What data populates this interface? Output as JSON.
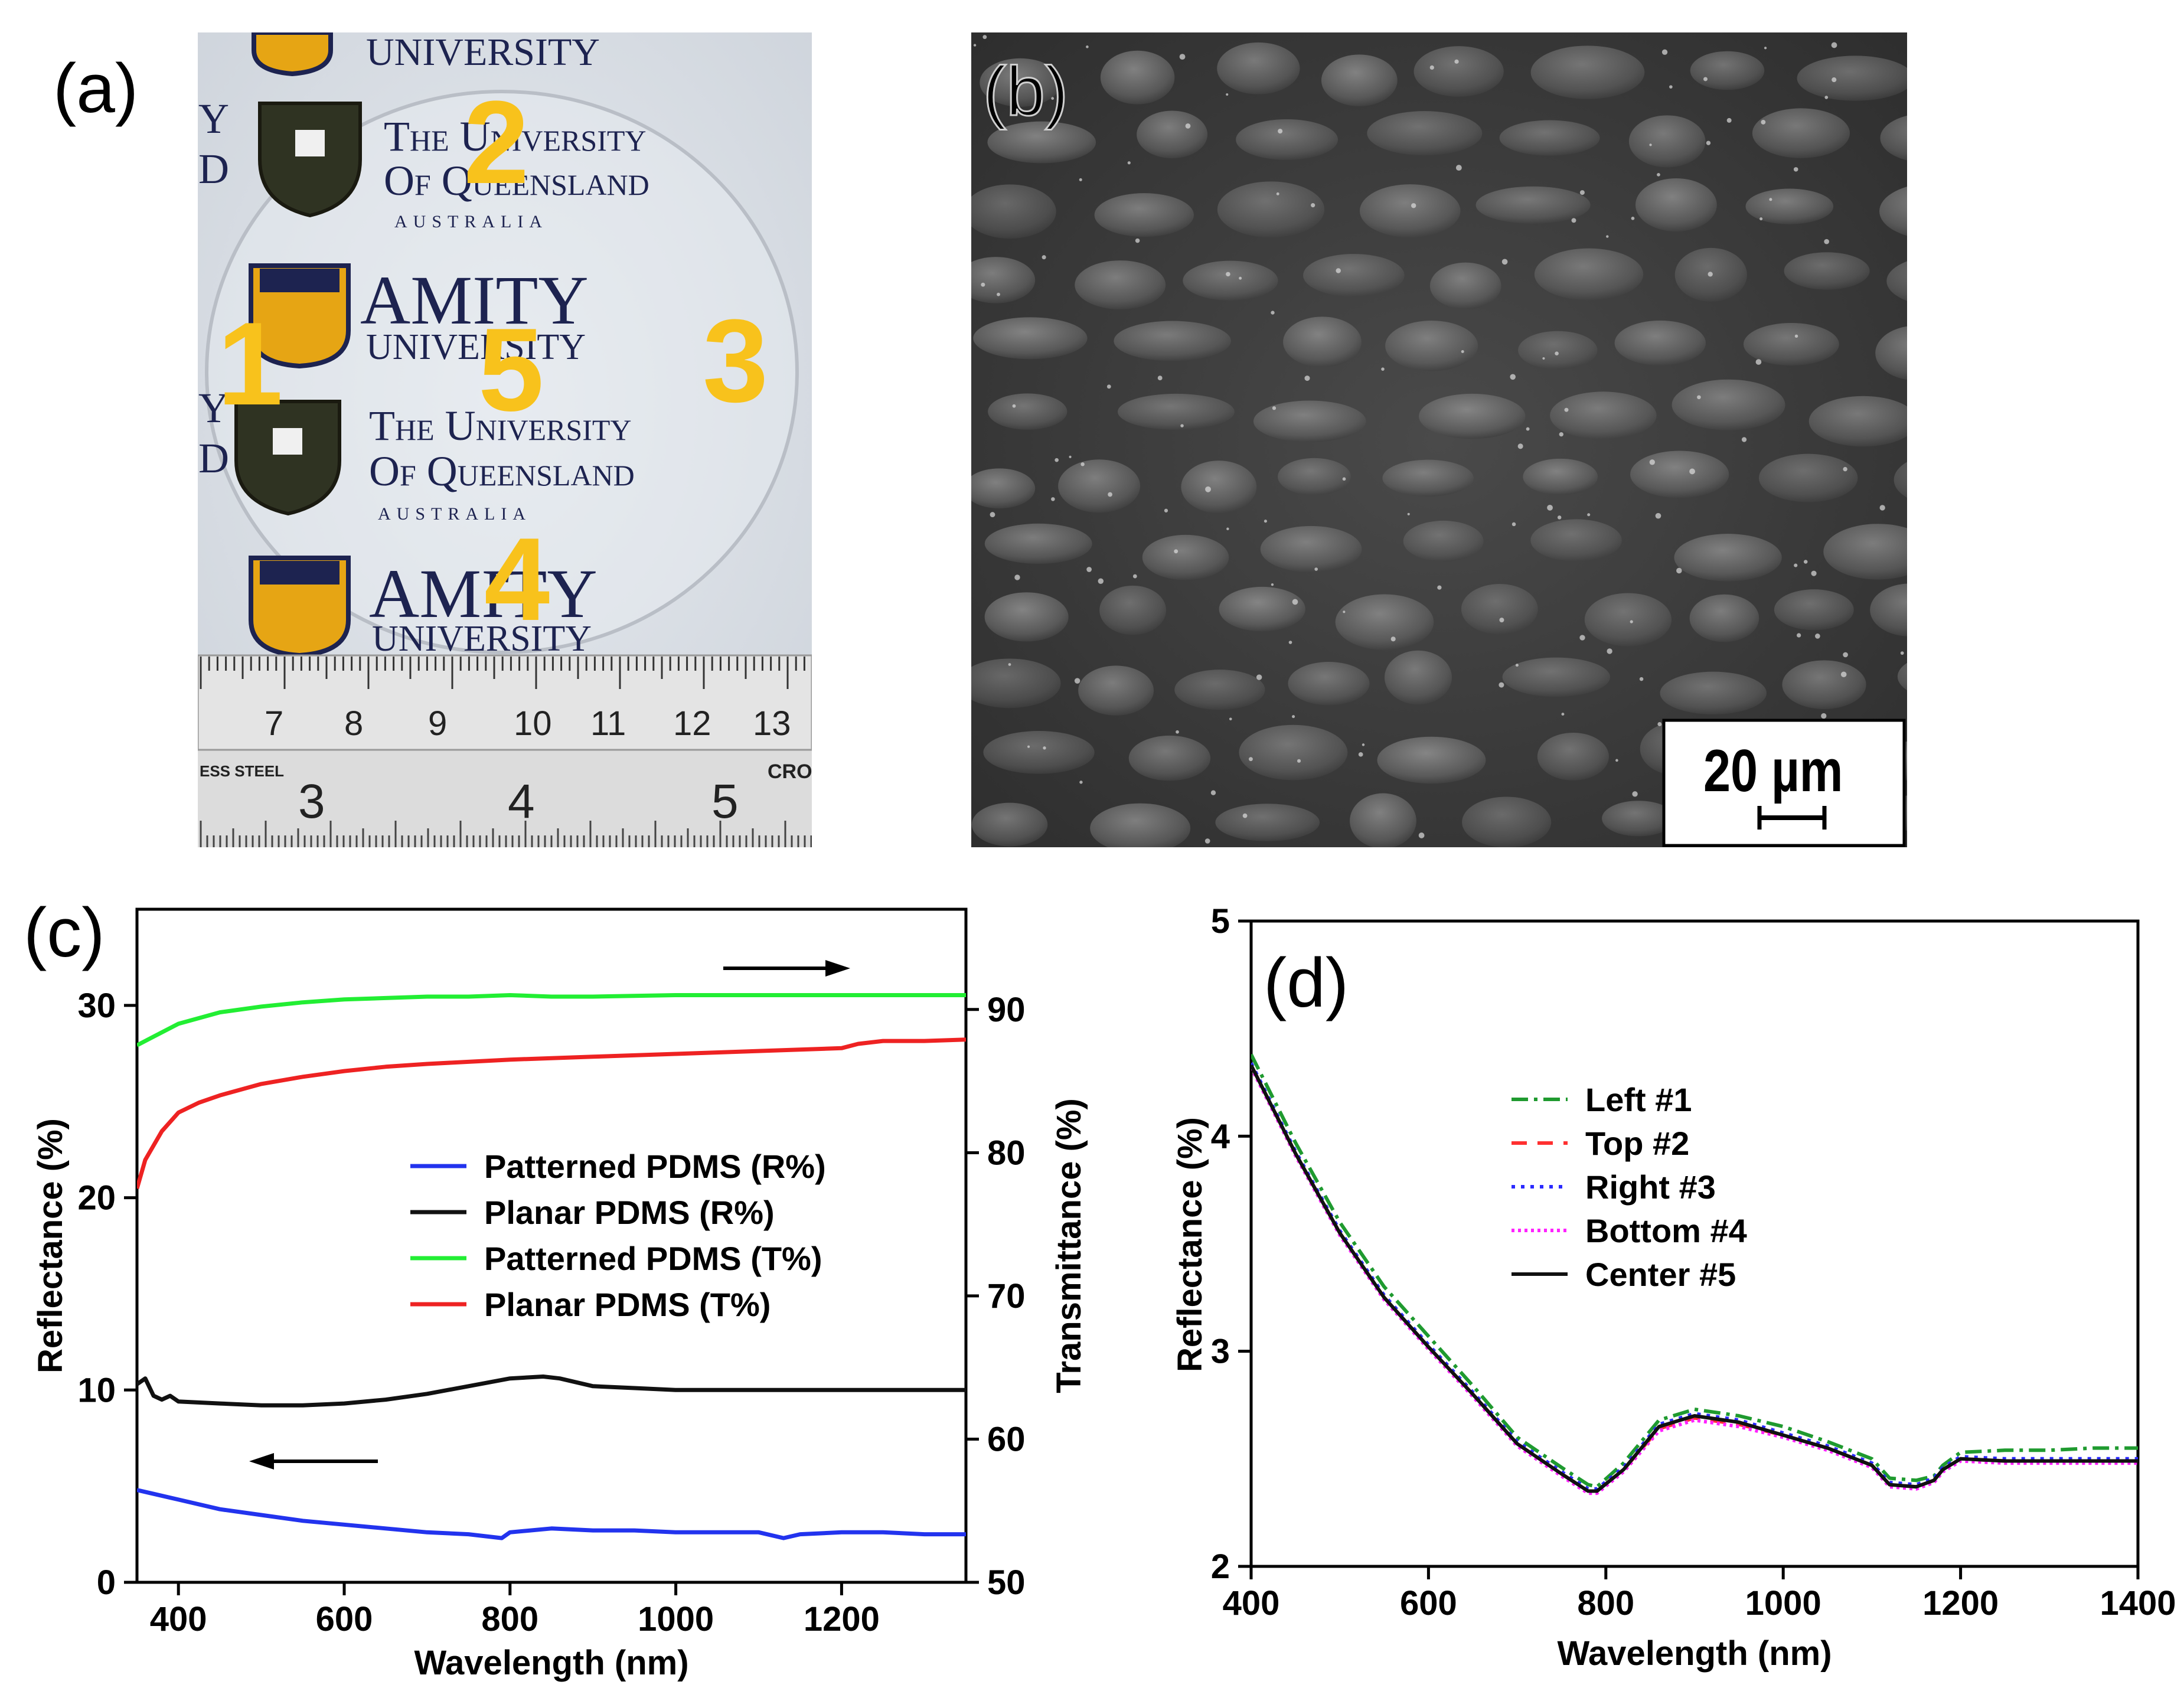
{
  "panels": {
    "a": {
      "label": "(a)",
      "logos": {
        "uq_line1": "The University",
        "uq_line2": "Of Queensland",
        "uq_line3": "AUSTRALIA",
        "amity_line1": "AMITY",
        "amity_line2": "UNIVERSITY",
        "fragment_y": "Y",
        "fragment_d": "D"
      },
      "position_markers": [
        "1",
        "2",
        "3",
        "4",
        "5"
      ],
      "ruler_top_numbers": [
        "7",
        "8",
        "9",
        "10",
        "11",
        "12",
        "13"
      ],
      "ruler_bottom_text_left": "ESS STEEL",
      "ruler_bottom_text_right": "CRO",
      "ruler_bottom_numbers": [
        "3",
        "4",
        "5"
      ]
    },
    "b": {
      "label": "(b)",
      "scale_bar_text": "20 µm"
    },
    "c": {
      "label": "(c)"
    },
    "d": {
      "label": "(d)"
    }
  },
  "chart_data": [
    {
      "panel": "c",
      "type": "line",
      "xlabel": "Wavelength (nm)",
      "ylabel": "Reflectance (%)",
      "y2label": "Transmittance (%)",
      "xlim": [
        350,
        1350
      ],
      "ylim": [
        0,
        35
      ],
      "y2lim": [
        50,
        97
      ],
      "xticks": [
        400,
        600,
        800,
        1000,
        1200
      ],
      "yticks": [
        0,
        10,
        20,
        30
      ],
      "y2ticks": [
        50,
        60,
        70,
        80,
        90
      ],
      "series": [
        {
          "name": "Patterned PDMS (R%)",
          "axis": "left",
          "color": "#2233ee",
          "x": [
            350,
            400,
            450,
            500,
            550,
            600,
            650,
            700,
            750,
            790,
            800,
            850,
            900,
            950,
            1000,
            1050,
            1100,
            1130,
            1150,
            1200,
            1250,
            1300,
            1350
          ],
          "y": [
            4.8,
            4.3,
            3.8,
            3.5,
            3.2,
            3.0,
            2.8,
            2.6,
            2.5,
            2.3,
            2.6,
            2.8,
            2.7,
            2.7,
            2.6,
            2.6,
            2.6,
            2.3,
            2.5,
            2.6,
            2.6,
            2.5,
            2.5
          ]
        },
        {
          "name": "Planar PDMS (R%)",
          "axis": "left",
          "color": "#111111",
          "x": [
            350,
            360,
            370,
            380,
            390,
            400,
            450,
            500,
            550,
            600,
            650,
            700,
            750,
            800,
            840,
            860,
            900,
            950,
            1000,
            1050,
            1100,
            1150,
            1200,
            1250,
            1300,
            1350
          ],
          "y": [
            10.3,
            10.6,
            9.7,
            9.5,
            9.7,
            9.4,
            9.3,
            9.2,
            9.2,
            9.3,
            9.5,
            9.8,
            10.2,
            10.6,
            10.7,
            10.6,
            10.2,
            10.1,
            10.0,
            10.0,
            10.0,
            10.0,
            10.0,
            10.0,
            10.0,
            10.0
          ]
        },
        {
          "name": "Patterned PDMS  (T%)",
          "axis": "right",
          "color": "#22ee33",
          "x": [
            350,
            400,
            450,
            500,
            550,
            600,
            650,
            700,
            750,
            800,
            850,
            900,
            1000,
            1100,
            1200,
            1300,
            1350
          ],
          "y": [
            87.5,
            89.0,
            89.8,
            90.2,
            90.5,
            90.7,
            90.8,
            90.9,
            90.9,
            91.0,
            90.9,
            90.9,
            91.0,
            91.0,
            91.0,
            91.0,
            91.0
          ]
        },
        {
          "name": "Planar PDMS (T%)",
          "axis": "right",
          "color": "#ee2222",
          "x": [
            350,
            360,
            380,
            400,
            425,
            450,
            500,
            550,
            600,
            650,
            700,
            800,
            900,
            1000,
            1100,
            1200,
            1220,
            1250,
            1300,
            1350
          ],
          "y": [
            77.5,
            79.5,
            81.5,
            82.8,
            83.5,
            84.0,
            84.8,
            85.3,
            85.7,
            86.0,
            86.2,
            86.5,
            86.7,
            86.9,
            87.1,
            87.3,
            87.6,
            87.8,
            87.8,
            87.9
          ]
        }
      ]
    },
    {
      "panel": "d",
      "type": "line",
      "xlabel": "Wavelength (nm)",
      "ylabel": "Reflectance (%)",
      "xlim": [
        400,
        1400
      ],
      "ylim": [
        2,
        5
      ],
      "xticks": [
        400,
        600,
        800,
        1000,
        1200,
        1400
      ],
      "yticks": [
        2,
        3,
        4,
        5
      ],
      "series": [
        {
          "name": "Left #1",
          "color": "#1f9a2f",
          "dash": "28,10,6,10",
          "x": [
            400,
            450,
            500,
            550,
            600,
            650,
            700,
            750,
            780,
            790,
            820,
            860,
            900,
            950,
            1000,
            1050,
            1100,
            1120,
            1150,
            1170,
            1180,
            1200,
            1250,
            1300,
            1350,
            1400
          ],
          "y": [
            4.38,
            3.97,
            3.6,
            3.3,
            3.07,
            2.84,
            2.6,
            2.46,
            2.38,
            2.37,
            2.48,
            2.68,
            2.73,
            2.7,
            2.65,
            2.58,
            2.5,
            2.41,
            2.4,
            2.42,
            2.47,
            2.53,
            2.54,
            2.54,
            2.55,
            2.55
          ]
        },
        {
          "name": "Top #2",
          "color": "#ff3030",
          "dash": "26,18",
          "x": [
            400,
            450,
            500,
            550,
            600,
            650,
            700,
            750,
            780,
            790,
            820,
            860,
            900,
            950,
            1000,
            1050,
            1100,
            1120,
            1150,
            1170,
            1180,
            1200,
            1250,
            1300,
            1350,
            1400
          ],
          "y": [
            4.33,
            3.92,
            3.55,
            3.25,
            3.02,
            2.8,
            2.57,
            2.43,
            2.35,
            2.35,
            2.45,
            2.64,
            2.69,
            2.66,
            2.61,
            2.55,
            2.47,
            2.38,
            2.37,
            2.4,
            2.45,
            2.5,
            2.49,
            2.49,
            2.49,
            2.49
          ]
        },
        {
          "name": "Right #3",
          "color": "#2a2aff",
          "dash": "6,10",
          "x": [
            400,
            450,
            500,
            550,
            600,
            650,
            700,
            750,
            780,
            790,
            820,
            860,
            900,
            950,
            1000,
            1050,
            1100,
            1120,
            1150,
            1170,
            1180,
            1200,
            1250,
            1300,
            1350,
            1400
          ],
          "y": [
            4.34,
            3.93,
            3.56,
            3.26,
            3.03,
            2.81,
            2.58,
            2.44,
            2.36,
            2.36,
            2.46,
            2.66,
            2.71,
            2.68,
            2.62,
            2.56,
            2.48,
            2.39,
            2.38,
            2.41,
            2.46,
            2.51,
            2.5,
            2.5,
            2.5,
            2.5
          ]
        },
        {
          "name": "Bottom #4",
          "color": "#ff22ff",
          "dash": "5,6",
          "x": [
            400,
            450,
            500,
            550,
            600,
            650,
            700,
            750,
            780,
            790,
            820,
            860,
            900,
            950,
            1000,
            1050,
            1100,
            1120,
            1150,
            1170,
            1180,
            1200,
            1250,
            1300,
            1350,
            1400
          ],
          "y": [
            4.32,
            3.91,
            3.54,
            3.24,
            3.01,
            2.79,
            2.56,
            2.42,
            2.34,
            2.34,
            2.44,
            2.63,
            2.68,
            2.65,
            2.6,
            2.54,
            2.46,
            2.37,
            2.36,
            2.39,
            2.44,
            2.49,
            2.48,
            2.48,
            2.48,
            2.48
          ]
        },
        {
          "name": "Center #5",
          "color": "#111111",
          "dash": "",
          "x": [
            400,
            450,
            500,
            550,
            600,
            650,
            700,
            750,
            780,
            790,
            820,
            860,
            900,
            950,
            1000,
            1050,
            1100,
            1120,
            1150,
            1170,
            1180,
            1200,
            1250,
            1300,
            1350,
            1400
          ],
          "y": [
            4.33,
            3.92,
            3.55,
            3.25,
            3.02,
            2.8,
            2.57,
            2.43,
            2.35,
            2.35,
            2.45,
            2.65,
            2.7,
            2.67,
            2.61,
            2.55,
            2.47,
            2.38,
            2.37,
            2.4,
            2.45,
            2.5,
            2.49,
            2.49,
            2.49,
            2.49
          ]
        }
      ]
    }
  ]
}
